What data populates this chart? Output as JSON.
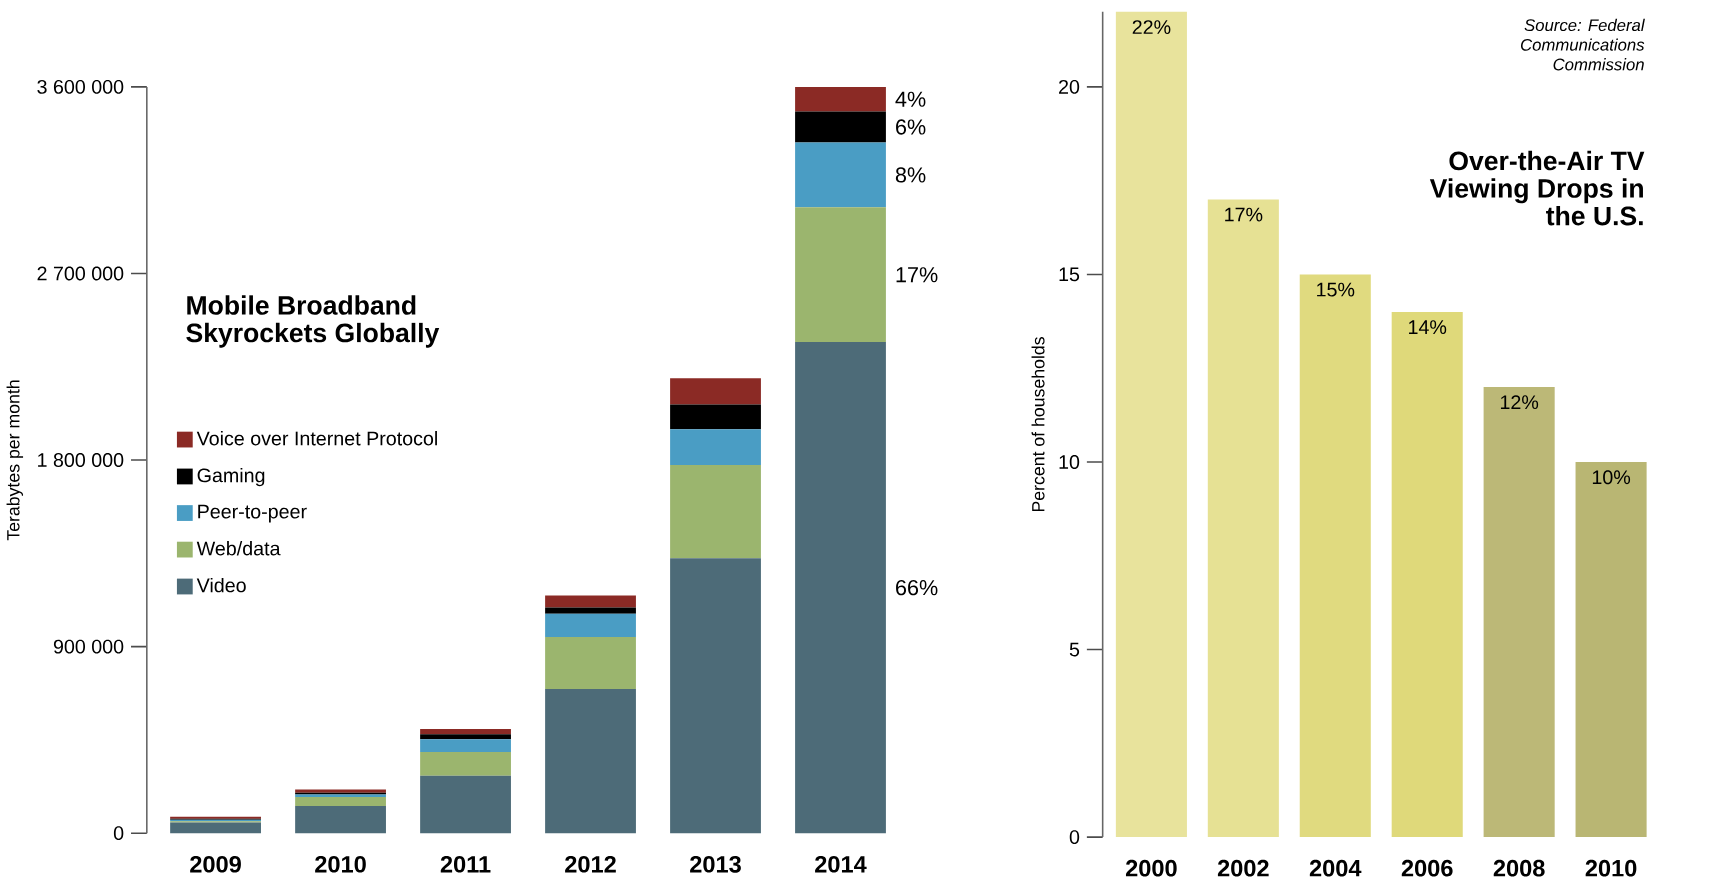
{
  "chart_data": [
    {
      "type": "bar",
      "title": "Mobile Broadband Skyrockets Globally",
      "ylabel": "Terabytes per month",
      "stacked": true,
      "legend": "left",
      "categories": [
        "2009",
        "2010",
        "2011",
        "2012",
        "2013",
        "2014"
      ],
      "ylim": [
        0,
        3600000
      ],
      "yticks": [
        0,
        {
          "value": 900000,
          "label": "900 000"
        },
        {
          "value": 1800000,
          "label": "1 800 000"
        },
        {
          "value": 2700000,
          "label": "2 700 000"
        },
        {
          "value": 3600000,
          "label": "3 600 000"
        }
      ],
      "series": [
        {
          "name": "Video",
          "color": "#4d6b78",
          "values": [
            51000,
            131000,
            277000,
            696000,
            1326000,
            2369000
          ]
        },
        {
          "name": "Web/data",
          "color": "#9bb56e",
          "values": [
            7000,
            43000,
            115000,
            250000,
            450000,
            650000
          ]
        },
        {
          "name": "Peer-to-peer",
          "color": "#4a9dc4",
          "values": [
            7000,
            13000,
            61000,
            112000,
            173000,
            313000
          ]
        },
        {
          "name": "Gaming",
          "color": "#000000",
          "values": [
            5000,
            8000,
            24000,
            31000,
            119000,
            149000
          ]
        },
        {
          "name": "Voice over Internet Protocol",
          "color": "#8b2a25",
          "values": [
            9000,
            16000,
            25000,
            57000,
            127000,
            119000
          ]
        }
      ],
      "annotations": [
        "4%",
        "6%",
        "8%",
        "17%",
        "66%"
      ]
    },
    {
      "type": "bar",
      "title": "Over-the-Air TV Viewing Drops in the U.S.",
      "ylabel": "Percent of households",
      "categories": [
        "2000",
        "2002",
        "2004",
        "2006",
        "2008",
        "2010"
      ],
      "values": [
        22,
        17,
        15,
        14,
        12,
        10
      ],
      "value_labels": [
        "22%",
        "17%",
        "15%",
        "14%",
        "12%",
        "10%"
      ],
      "colors": [
        "#e8e39c",
        "#e6e194",
        "#e0da7f",
        "#dfd97a",
        "#bcb877",
        "#b9b673"
      ],
      "ylim": [
        0,
        22
      ],
      "yticks": [
        0,
        5,
        10,
        15,
        20
      ],
      "annotations": [
        "Source: Federal Communications Commission"
      ]
    }
  ]
}
